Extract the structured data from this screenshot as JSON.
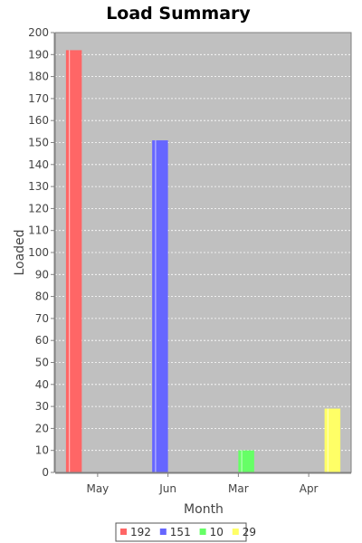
{
  "chart_data": {
    "type": "bar",
    "title": "Load Summary",
    "xlabel": "Month",
    "ylabel": "Loaded",
    "categories": [
      "May",
      "Jun",
      "Mar",
      "Apr"
    ],
    "series": [
      {
        "name": "192",
        "color": "#ff6666",
        "values": [
          192,
          null,
          null,
          null
        ]
      },
      {
        "name": "151",
        "color": "#6666ff",
        "values": [
          null,
          151,
          null,
          null
        ]
      },
      {
        "name": "10",
        "color": "#66ff66",
        "values": [
          null,
          null,
          10,
          null
        ]
      },
      {
        "name": "29",
        "color": "#ffff66",
        "values": [
          null,
          null,
          null,
          29
        ]
      }
    ],
    "ylim": [
      0,
      200
    ],
    "yticks": [
      0,
      10,
      20,
      30,
      40,
      50,
      60,
      70,
      80,
      90,
      100,
      110,
      120,
      130,
      140,
      150,
      160,
      170,
      180,
      190,
      200
    ],
    "grid": true,
    "legend_position": "bottom",
    "plot_background": "#c0c0c0"
  }
}
